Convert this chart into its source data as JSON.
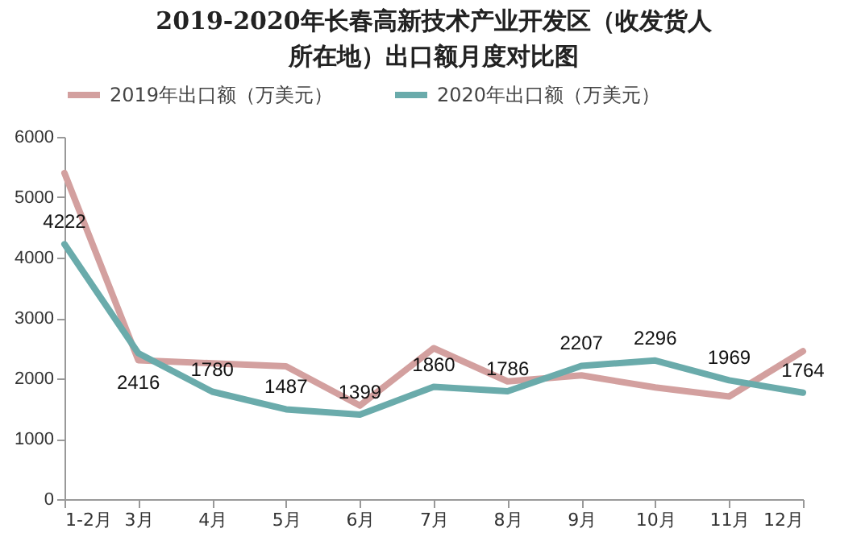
{
  "chart_data": {
    "type": "line",
    "title": "2019-2020年长春高新技术产业开发区（收发货人所在地）出口额月度对比图",
    "categories": [
      "1-2月",
      "3月",
      "4月",
      "5月",
      "6月",
      "7月",
      "8月",
      "9月",
      "10月",
      "11月",
      "12月"
    ],
    "series": [
      {
        "name": "2019年出口额（万美元）",
        "color": "#d3a09f",
        "values": [
          5400,
          2300,
          2250,
          2200,
          1550,
          2500,
          1950,
          2050,
          1850,
          1700,
          2450
        ]
      },
      {
        "name": "2020年出口额（万美元）",
        "color": "#6aabab",
        "values": [
          4222,
          2416,
          1780,
          1487,
          1399,
          1860,
          1786,
          2207,
          2296,
          1969,
          1764
        ],
        "value_labels": [
          "4222",
          "2416",
          "1780",
          "1487",
          "1399",
          "1860",
          "1786",
          "2207",
          "2296",
          "1969",
          "1764"
        ]
      }
    ],
    "ylim": [
      0,
      6000
    ],
    "yticks": [
      0,
      1000,
      2000,
      3000,
      4000,
      5000,
      6000
    ],
    "grid": false,
    "legend": "top",
    "marker": "none",
    "line_style": "solid"
  }
}
